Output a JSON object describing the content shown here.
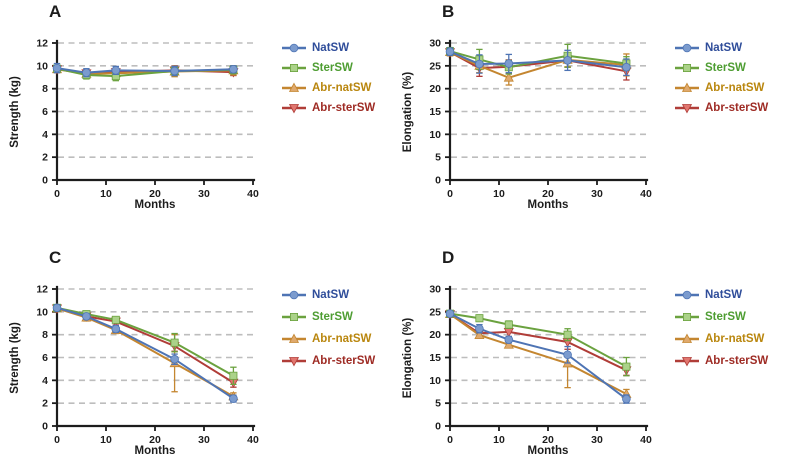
{
  "style": {
    "background": "#ffffff",
    "axis_color": "#1c1c1c",
    "text_color": "#1c1c1c",
    "grid_color": "#bdbdbd"
  },
  "series_styles": [
    {
      "name": "NatSW",
      "marker": "circle",
      "line_color": "#4e74b4",
      "marker_fill": "#7b9bce",
      "label_color": "#2f4d9a"
    },
    {
      "name": "SterSW",
      "marker": "square",
      "line_color": "#6ba23f",
      "marker_fill": "#abd289",
      "label_color": "#4e9d32"
    },
    {
      "name": "Abr-natSW",
      "marker": "triangle-up",
      "line_color": "#c48630",
      "marker_fill": "#dfa96d",
      "label_color": "#b9860e"
    },
    {
      "name": "Abr-sterSW",
      "marker": "triangle-down",
      "line_color": "#b03d38",
      "marker_fill": "#e1766f",
      "label_color": "#9e2b24"
    }
  ],
  "chart_data": [
    {
      "panel_label": "A",
      "type": "line",
      "title": "",
      "xlabel": "Months",
      "ylabel": "Strength (kg)",
      "x": [
        0,
        6,
        12,
        24,
        36
      ],
      "xlim": [
        0,
        40
      ],
      "xticks": [
        0,
        10,
        20,
        30,
        40
      ],
      "ylim": [
        0,
        12
      ],
      "yticks": [
        0,
        2,
        4,
        6,
        8,
        10,
        12
      ],
      "grid": "horizontal-dashed",
      "legend_position": "right",
      "series": [
        {
          "name": "NatSW",
          "values": [
            9.8,
            9.4,
            9.6,
            9.55,
            9.7
          ],
          "errors": [
            0.4,
            0.35,
            0.35,
            0.4,
            0.3
          ]
        },
        {
          "name": "SterSW",
          "values": [
            9.75,
            9.2,
            9.1,
            9.55,
            9.65
          ],
          "errors": [
            0.3,
            0.35,
            0.4,
            0.4,
            0.35
          ]
        },
        {
          "name": "Abr-natSW",
          "values": [
            9.7,
            9.3,
            9.35,
            9.5,
            9.6
          ],
          "errors": [
            0.3,
            0.3,
            0.3,
            0.45,
            0.4
          ]
        },
        {
          "name": "Abr-sterSW",
          "values": [
            9.7,
            9.35,
            9.45,
            9.6,
            9.45
          ],
          "errors": [
            0.3,
            0.3,
            0.3,
            0.4,
            0.3
          ]
        }
      ]
    },
    {
      "panel_label": "B",
      "type": "line",
      "title": "",
      "xlabel": "Months",
      "ylabel": "Elongation (%)",
      "x": [
        0,
        6,
        12,
        24,
        36
      ],
      "xlim": [
        0,
        40
      ],
      "xticks": [
        0,
        10,
        20,
        30,
        40
      ],
      "ylim": [
        0,
        30
      ],
      "yticks": [
        0,
        5,
        10,
        15,
        20,
        25,
        30
      ],
      "grid": "horizontal-dashed",
      "legend_position": "right",
      "series": [
        {
          "name": "NatSW",
          "values": [
            28.1,
            25.4,
            25.5,
            26.2,
            24.7
          ],
          "errors": [
            0.8,
            2.0,
            2.0,
            2.2,
            1.8
          ]
        },
        {
          "name": "SterSW",
          "values": [
            28.2,
            26.4,
            24.7,
            27.2,
            25.5
          ],
          "errors": [
            0.8,
            2.2,
            1.5,
            2.5,
            1.5
          ]
        },
        {
          "name": "Abr-natSW",
          "values": [
            28.0,
            25.0,
            22.4,
            26.3,
            25.2
          ],
          "errors": [
            0.8,
            1.5,
            1.6,
            1.5,
            2.4
          ]
        },
        {
          "name": "Abr-sterSW",
          "values": [
            28.0,
            24.5,
            24.8,
            26.2,
            23.8
          ],
          "errors": [
            0.8,
            1.8,
            1.5,
            1.5,
            1.9
          ]
        }
      ]
    },
    {
      "panel_label": "C",
      "type": "line",
      "title": "",
      "xlabel": "Months",
      "ylabel": "Strength (kg)",
      "x": [
        0,
        6,
        12,
        24,
        36
      ],
      "xlim": [
        0,
        40
      ],
      "xticks": [
        0,
        10,
        20,
        30,
        40
      ],
      "ylim": [
        0,
        12
      ],
      "yticks": [
        0,
        2,
        4,
        6,
        8,
        10,
        12
      ],
      "grid": "horizontal-dashed",
      "legend_position": "right",
      "series": [
        {
          "name": "NatSW",
          "values": [
            10.35,
            9.6,
            8.5,
            5.85,
            2.4
          ],
          "errors": [
            0.25,
            0.25,
            0.3,
            0.45,
            0.3
          ]
        },
        {
          "name": "SterSW",
          "values": [
            10.35,
            9.8,
            9.3,
            7.3,
            4.4
          ],
          "errors": [
            0.2,
            0.25,
            0.25,
            0.8,
            0.75
          ]
        },
        {
          "name": "Abr-natSW",
          "values": [
            10.3,
            9.5,
            8.4,
            5.5,
            2.6
          ],
          "errors": [
            0.2,
            0.3,
            0.3,
            2.5,
            0.3
          ]
        },
        {
          "name": "Abr-sterSW",
          "values": [
            10.3,
            9.6,
            9.15,
            7.0,
            3.8
          ],
          "errors": [
            0.2,
            0.25,
            0.3,
            0.45,
            0.4
          ]
        }
      ]
    },
    {
      "panel_label": "D",
      "type": "line",
      "title": "",
      "xlabel": "Months",
      "ylabel": "Elongation (%)",
      "x": [
        0,
        6,
        12,
        24,
        36
      ],
      "xlim": [
        0,
        40
      ],
      "xticks": [
        0,
        10,
        20,
        30,
        40
      ],
      "ylim": [
        0,
        30
      ],
      "yticks": [
        0,
        5,
        10,
        15,
        20,
        25,
        30
      ],
      "grid": "horizontal-dashed",
      "legend_position": "right",
      "series": [
        {
          "name": "NatSW",
          "values": [
            24.6,
            21.3,
            18.9,
            15.6,
            5.9
          ],
          "errors": [
            0.5,
            0.9,
            0.7,
            1.8,
            0.9
          ]
        },
        {
          "name": "SterSW",
          "values": [
            24.6,
            23.6,
            22.2,
            20.0,
            13.0
          ],
          "errors": [
            0.5,
            0.7,
            0.8,
            1.3,
            2.0
          ]
        },
        {
          "name": "Abr-natSW",
          "values": [
            24.5,
            19.9,
            17.8,
            13.7,
            7.0
          ],
          "errors": [
            0.5,
            0.6,
            0.6,
            [
              5.3,
              1.8
            ],
            1.0
          ]
        },
        {
          "name": "Abr-sterSW",
          "values": [
            24.5,
            20.3,
            20.6,
            18.4,
            12.2
          ],
          "errors": [
            0.5,
            0.7,
            1.0,
            1.6,
            1.1
          ]
        }
      ]
    }
  ]
}
